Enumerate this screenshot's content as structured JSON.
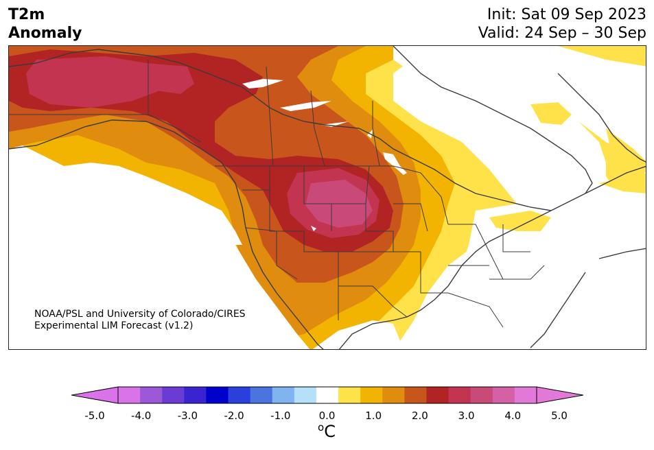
{
  "title": {
    "left_line1": "T2m",
    "left_line2": "Anomaly",
    "init": "Init: Sat 09 Sep 2023",
    "valid": "Valid: 24 Sep – 30 Sep"
  },
  "credit": {
    "line1": "NOAA/PSL and University of Colorado/CIRES",
    "line2": "Experimental LIM Forecast (v1.2)"
  },
  "colorbar": {
    "unit_sup": "o",
    "unit_main": "C",
    "ticks": [
      "-5.0",
      "-4.0",
      "-3.0",
      "-2.0",
      "-1.0",
      "0.0",
      "1.0",
      "2.0",
      "3.0",
      "4.0",
      "5.0"
    ],
    "levels": [
      -5.0,
      -4.5,
      -4.0,
      -3.5,
      -3.0,
      -2.5,
      -2.0,
      -1.5,
      -1.0,
      -0.5,
      0.5,
      1.0,
      1.5,
      2.0,
      2.5,
      3.0,
      3.5,
      4.0,
      4.5,
      5.0
    ],
    "colors": [
      "#d974e8",
      "#9b59d9",
      "#6b3bd6",
      "#3a23d0",
      "#0000cc",
      "#2a3fdc",
      "#4a74e0",
      "#7fb4f0",
      "#b5e0fa",
      "#ffffff",
      "#ffe14a",
      "#f2b400",
      "#df8c0f",
      "#c8561c",
      "#b22424",
      "#c2344f",
      "#c94a78",
      "#d460a8",
      "#e278d8"
    ],
    "under_color": "#d974e8",
    "over_color": "#e278d8"
  }
}
